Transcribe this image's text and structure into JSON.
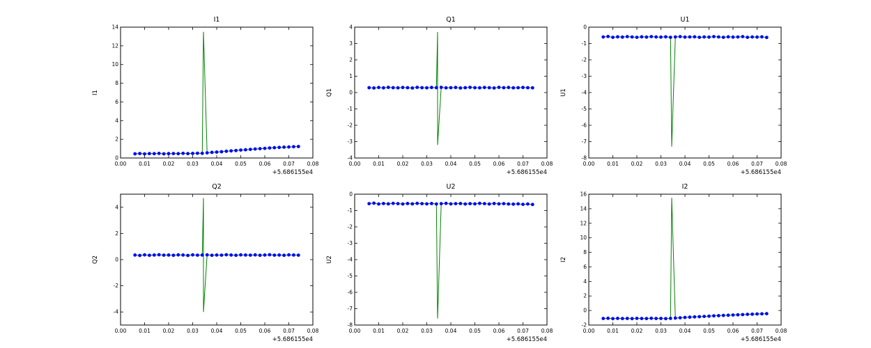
{
  "figure": {
    "background": "#ffffff"
  },
  "colors": {
    "line": "#008000",
    "marker": "#0000ff",
    "axis": "#000000",
    "text": "#000000"
  },
  "chart_data": [
    {
      "type": "line",
      "title": "I1",
      "ylabel": "I1",
      "xlabel": "",
      "x_offset_label": "+5.686155e4",
      "xlim": [
        0,
        0.08
      ],
      "ylim": [
        0,
        14
      ],
      "xticks": [
        0,
        0.01,
        0.02,
        0.03,
        0.04,
        0.05,
        0.06,
        0.07,
        0.08
      ],
      "xticklabels": [
        "0.00",
        "0.01",
        "0.02",
        "0.03",
        "0.04",
        "0.05",
        "0.06",
        "0.07",
        "0.08"
      ],
      "yticks": [
        0,
        2,
        4,
        6,
        8,
        10,
        12,
        14
      ],
      "yticklabels": [
        "0",
        "2",
        "4",
        "6",
        "8",
        "10",
        "12",
        "14"
      ],
      "x": [
        0.006,
        0.008,
        0.01,
        0.012,
        0.014,
        0.016,
        0.018,
        0.02,
        0.022,
        0.024,
        0.026,
        0.028,
        0.03,
        0.032,
        0.034,
        0.036,
        0.038,
        0.04,
        0.042,
        0.044,
        0.046,
        0.048,
        0.05,
        0.052,
        0.054,
        0.056,
        0.058,
        0.06,
        0.062,
        0.064,
        0.066,
        0.068,
        0.07,
        0.072,
        0.074
      ],
      "y": [
        0.45,
        0.48,
        0.44,
        0.47,
        0.46,
        0.49,
        0.45,
        0.47,
        0.48,
        0.46,
        0.5,
        0.47,
        0.49,
        0.51,
        0.5,
        0.55,
        0.6,
        0.63,
        0.67,
        0.72,
        0.76,
        0.8,
        0.85,
        0.88,
        0.92,
        0.96,
        1.0,
        1.03,
        1.07,
        1.1,
        1.13,
        1.16,
        1.18,
        1.21,
        1.23
      ],
      "spike": {
        "x": 0.0345,
        "y": [
          13.5
        ]
      }
    },
    {
      "type": "line",
      "title": "Q1",
      "ylabel": "Q1",
      "xlabel": "",
      "x_offset_label": "+5.686155e4",
      "xlim": [
        0,
        0.08
      ],
      "ylim": [
        -4,
        4
      ],
      "xticks": [
        0,
        0.01,
        0.02,
        0.03,
        0.04,
        0.05,
        0.06,
        0.07,
        0.08
      ],
      "xticklabels": [
        "0.00",
        "0.01",
        "0.02",
        "0.03",
        "0.04",
        "0.05",
        "0.06",
        "0.07",
        "0.08"
      ],
      "yticks": [
        -4,
        -3,
        -2,
        -1,
        0,
        1,
        2,
        3,
        4
      ],
      "yticklabels": [
        "-4",
        "-3",
        "-2",
        "-1",
        "0",
        "1",
        "2",
        "3",
        "4"
      ],
      "x": [
        0.006,
        0.008,
        0.01,
        0.012,
        0.014,
        0.016,
        0.018,
        0.02,
        0.022,
        0.024,
        0.026,
        0.028,
        0.03,
        0.032,
        0.034,
        0.036,
        0.038,
        0.04,
        0.042,
        0.044,
        0.046,
        0.048,
        0.05,
        0.052,
        0.054,
        0.056,
        0.058,
        0.06,
        0.062,
        0.064,
        0.066,
        0.068,
        0.07,
        0.072,
        0.074
      ],
      "y": [
        0.3,
        0.28,
        0.31,
        0.29,
        0.32,
        0.3,
        0.29,
        0.31,
        0.3,
        0.28,
        0.32,
        0.3,
        0.29,
        0.31,
        0.3,
        0.32,
        0.29,
        0.3,
        0.31,
        0.28,
        0.3,
        0.32,
        0.3,
        0.29,
        0.31,
        0.3,
        0.28,
        0.32,
        0.3,
        0.31,
        0.29,
        0.3,
        0.31,
        0.3,
        0.29
      ],
      "spike": {
        "x": 0.0345,
        "y": [
          3.7,
          -3.2
        ]
      }
    },
    {
      "type": "line",
      "title": "U1",
      "ylabel": "U1",
      "xlabel": "",
      "x_offset_label": "+5.686155e4",
      "xlim": [
        0,
        0.08
      ],
      "ylim": [
        -8,
        0
      ],
      "xticks": [
        0,
        0.01,
        0.02,
        0.03,
        0.04,
        0.05,
        0.06,
        0.07,
        0.08
      ],
      "xticklabels": [
        "0.00",
        "0.01",
        "0.02",
        "0.03",
        "0.04",
        "0.05",
        "0.06",
        "0.07",
        "0.08"
      ],
      "yticks": [
        -8,
        -7,
        -6,
        -5,
        -4,
        -3,
        -2,
        -1,
        0
      ],
      "yticklabels": [
        "-8",
        "-7",
        "-6",
        "-5",
        "-4",
        "-3",
        "-2",
        "-1",
        "0"
      ],
      "x": [
        0.006,
        0.008,
        0.01,
        0.012,
        0.014,
        0.016,
        0.018,
        0.02,
        0.022,
        0.024,
        0.026,
        0.028,
        0.03,
        0.032,
        0.034,
        0.036,
        0.038,
        0.04,
        0.042,
        0.044,
        0.046,
        0.048,
        0.05,
        0.052,
        0.054,
        0.056,
        0.058,
        0.06,
        0.062,
        0.064,
        0.066,
        0.068,
        0.07,
        0.072,
        0.074
      ],
      "y": [
        -0.6,
        -0.57,
        -0.62,
        -0.59,
        -0.61,
        -0.58,
        -0.6,
        -0.62,
        -0.59,
        -0.61,
        -0.58,
        -0.6,
        -0.61,
        -0.59,
        -0.62,
        -0.6,
        -0.58,
        -0.61,
        -0.6,
        -0.59,
        -0.62,
        -0.6,
        -0.61,
        -0.58,
        -0.6,
        -0.62,
        -0.59,
        -0.61,
        -0.6,
        -0.58,
        -0.62,
        -0.6,
        -0.61,
        -0.59,
        -0.63
      ],
      "spike": {
        "x": 0.0345,
        "y": [
          -7.3
        ]
      }
    },
    {
      "type": "line",
      "title": "Q2",
      "ylabel": "Q2",
      "xlabel": "",
      "x_offset_label": "+5.686155e4",
      "xlim": [
        0,
        0.08
      ],
      "ylim": [
        -5,
        5
      ],
      "xticks": [
        0,
        0.01,
        0.02,
        0.03,
        0.04,
        0.05,
        0.06,
        0.07,
        0.08
      ],
      "xticklabels": [
        "0.00",
        "0.01",
        "0.02",
        "0.03",
        "0.04",
        "0.05",
        "0.06",
        "0.07",
        "0.08"
      ],
      "yticks": [
        -4,
        -2,
        0,
        2,
        4
      ],
      "yticklabels": [
        "-4",
        "-2",
        "0",
        "2",
        "4"
      ],
      "x": [
        0.006,
        0.008,
        0.01,
        0.012,
        0.014,
        0.016,
        0.018,
        0.02,
        0.022,
        0.024,
        0.026,
        0.028,
        0.03,
        0.032,
        0.034,
        0.036,
        0.038,
        0.04,
        0.042,
        0.044,
        0.046,
        0.048,
        0.05,
        0.052,
        0.054,
        0.056,
        0.058,
        0.06,
        0.062,
        0.064,
        0.066,
        0.068,
        0.07,
        0.072,
        0.074
      ],
      "y": [
        0.35,
        0.32,
        0.36,
        0.33,
        0.35,
        0.37,
        0.34,
        0.35,
        0.33,
        0.36,
        0.35,
        0.32,
        0.36,
        0.34,
        0.35,
        0.36,
        0.33,
        0.35,
        0.34,
        0.37,
        0.35,
        0.33,
        0.36,
        0.35,
        0.34,
        0.36,
        0.33,
        0.35,
        0.37,
        0.34,
        0.35,
        0.33,
        0.36,
        0.35,
        0.34
      ],
      "spike": {
        "x": 0.0345,
        "y": [
          4.7,
          -4.0
        ]
      }
    },
    {
      "type": "line",
      "title": "U2",
      "ylabel": "U2",
      "xlabel": "",
      "x_offset_label": "+5.686155e4",
      "xlim": [
        0,
        0.08
      ],
      "ylim": [
        -8,
        0
      ],
      "xticks": [
        0,
        0.01,
        0.02,
        0.03,
        0.04,
        0.05,
        0.06,
        0.07,
        0.08
      ],
      "xticklabels": [
        "0.00",
        "0.01",
        "0.02",
        "0.03",
        "0.04",
        "0.05",
        "0.06",
        "0.07",
        "0.08"
      ],
      "yticks": [
        -8,
        -7,
        -6,
        -5,
        -4,
        -3,
        -2,
        -1,
        0
      ],
      "yticklabels": [
        "-8",
        "-7",
        "-6",
        "-5",
        "-4",
        "-3",
        "-2",
        "-1",
        "0"
      ],
      "x": [
        0.006,
        0.008,
        0.01,
        0.012,
        0.014,
        0.016,
        0.018,
        0.02,
        0.022,
        0.024,
        0.026,
        0.028,
        0.03,
        0.032,
        0.034,
        0.036,
        0.038,
        0.04,
        0.042,
        0.044,
        0.046,
        0.048,
        0.05,
        0.052,
        0.054,
        0.056,
        0.058,
        0.06,
        0.062,
        0.064,
        0.066,
        0.068,
        0.07,
        0.072,
        0.074
      ],
      "y": [
        -0.58,
        -0.55,
        -0.6,
        -0.57,
        -0.59,
        -0.56,
        -0.58,
        -0.6,
        -0.57,
        -0.59,
        -0.56,
        -0.58,
        -0.59,
        -0.57,
        -0.6,
        -0.58,
        -0.56,
        -0.59,
        -0.58,
        -0.57,
        -0.6,
        -0.58,
        -0.59,
        -0.56,
        -0.58,
        -0.6,
        -0.57,
        -0.59,
        -0.58,
        -0.6,
        -0.61,
        -0.59,
        -0.62,
        -0.6,
        -0.63
      ],
      "spike": {
        "x": 0.0345,
        "y": [
          -7.6
        ]
      }
    },
    {
      "type": "line",
      "title": "I2",
      "ylabel": "I2",
      "xlabel": "",
      "x_offset_label": "+5.686155e4",
      "xlim": [
        0,
        0.08
      ],
      "ylim": [
        -2,
        16
      ],
      "xticks": [
        0,
        0.01,
        0.02,
        0.03,
        0.04,
        0.05,
        0.06,
        0.07,
        0.08
      ],
      "xticklabels": [
        "0.00",
        "0.01",
        "0.02",
        "0.03",
        "0.04",
        "0.05",
        "0.06",
        "0.07",
        "0.08"
      ],
      "yticks": [
        -2,
        0,
        2,
        4,
        6,
        8,
        10,
        12,
        14,
        16
      ],
      "yticklabels": [
        "-2",
        "0",
        "2",
        "4",
        "6",
        "8",
        "10",
        "12",
        "14",
        "16"
      ],
      "x": [
        0.006,
        0.008,
        0.01,
        0.012,
        0.014,
        0.016,
        0.018,
        0.02,
        0.022,
        0.024,
        0.026,
        0.028,
        0.03,
        0.032,
        0.034,
        0.036,
        0.038,
        0.04,
        0.042,
        0.044,
        0.046,
        0.048,
        0.05,
        0.052,
        0.054,
        0.056,
        0.058,
        0.06,
        0.062,
        0.064,
        0.066,
        0.068,
        0.07,
        0.072,
        0.074
      ],
      "y": [
        -1.1,
        -1.07,
        -1.12,
        -1.08,
        -1.11,
        -1.09,
        -1.12,
        -1.08,
        -1.1,
        -1.11,
        -1.07,
        -1.1,
        -1.09,
        -1.12,
        -1.08,
        -1.04,
        -1.0,
        -0.96,
        -0.92,
        -0.88,
        -0.85,
        -0.81,
        -0.78,
        -0.74,
        -0.71,
        -0.68,
        -0.65,
        -0.62,
        -0.59,
        -0.56,
        -0.53,
        -0.51,
        -0.48,
        -0.46,
        -0.44
      ],
      "spike": {
        "x": 0.0345,
        "y": [
          15.5
        ]
      }
    }
  ]
}
